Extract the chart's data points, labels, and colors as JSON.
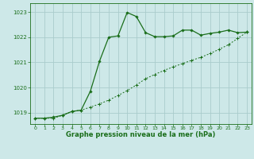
{
  "title": "Graphe pression niveau de la mer (hPa)",
  "bg_color": "#cde8e8",
  "grid_color": "#aacccc",
  "line_color": "#1a6e1a",
  "xlim": [
    -0.5,
    23.5
  ],
  "ylim": [
    1018.55,
    1023.35
  ],
  "yticks": [
    1019,
    1020,
    1021,
    1022,
    1023
  ],
  "xticks": [
    0,
    1,
    2,
    3,
    4,
    5,
    6,
    7,
    8,
    9,
    10,
    11,
    12,
    13,
    14,
    15,
    16,
    17,
    18,
    19,
    20,
    21,
    22,
    23
  ],
  "series1_x": [
    0,
    1,
    2,
    3,
    4,
    5,
    6,
    7,
    8,
    9,
    10,
    11,
    12,
    13,
    14,
    15,
    16,
    17,
    18,
    19,
    20,
    21,
    22,
    23
  ],
  "series1_y": [
    1018.78,
    1018.78,
    1018.82,
    1018.9,
    1019.05,
    1019.1,
    1019.85,
    1021.05,
    1022.0,
    1022.05,
    1022.98,
    1022.82,
    1022.18,
    1022.02,
    1022.02,
    1022.05,
    1022.28,
    1022.28,
    1022.08,
    1022.15,
    1022.2,
    1022.28,
    1022.18,
    1022.2
  ],
  "series2_x": [
    0,
    1,
    2,
    3,
    4,
    5,
    6,
    7,
    8,
    9,
    10,
    11,
    12,
    13,
    14,
    15,
    16,
    17,
    18,
    19,
    20,
    21,
    22,
    23
  ],
  "series2_y": [
    1018.78,
    1018.78,
    1018.78,
    1018.9,
    1019.05,
    1019.1,
    1019.22,
    1019.35,
    1019.5,
    1019.68,
    1019.88,
    1020.1,
    1020.35,
    1020.52,
    1020.68,
    1020.82,
    1020.95,
    1021.08,
    1021.2,
    1021.35,
    1021.52,
    1021.7,
    1021.95,
    1022.2
  ]
}
